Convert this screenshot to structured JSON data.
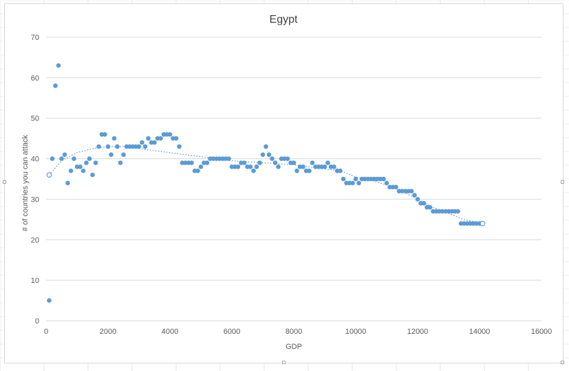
{
  "colors": {
    "point": "#5b9bd5",
    "trend": "#5b9bd5",
    "grid": "#d9d9d9",
    "text": "#595959",
    "title": "#404040"
  },
  "chart_data": {
    "type": "scatter",
    "title": "Egypt",
    "xlabel": "GDP",
    "ylabel": "# of countries you can attack",
    "xlim": [
      0,
      16000
    ],
    "ylim": [
      0,
      70
    ],
    "x_ticks": [
      0,
      2000,
      4000,
      6000,
      8000,
      10000,
      12000,
      14000,
      16000
    ],
    "y_ticks": [
      0,
      10,
      20,
      30,
      40,
      50,
      60,
      70
    ],
    "grid": "horizontal",
    "legend": "none",
    "trendline": {
      "style": "dotted",
      "kind": "polynomial",
      "points": [
        [
          100,
          36
        ],
        [
          500,
          39.5
        ],
        [
          1000,
          41.5
        ],
        [
          1500,
          42.5
        ],
        [
          2000,
          43
        ],
        [
          2500,
          43
        ],
        [
          3000,
          42.5
        ],
        [
          4000,
          41.5
        ],
        [
          5000,
          40.5
        ],
        [
          6000,
          39.5
        ],
        [
          7000,
          39
        ],
        [
          8000,
          38.5
        ],
        [
          9000,
          37.5
        ],
        [
          9500,
          37
        ],
        [
          10000,
          35.5
        ],
        [
          10500,
          34.7
        ],
        [
          11000,
          33.5
        ],
        [
          11500,
          32
        ],
        [
          12000,
          30
        ],
        [
          12500,
          28
        ],
        [
          13000,
          26.5
        ],
        [
          13500,
          25
        ],
        [
          14100,
          24
        ]
      ]
    },
    "series": [
      {
        "points": [
          [
            100,
            5
          ],
          [
            200,
            40
          ],
          [
            300,
            58
          ],
          [
            400,
            63
          ],
          [
            500,
            40
          ],
          [
            600,
            41
          ],
          [
            700,
            34
          ],
          [
            800,
            37
          ],
          [
            900,
            40
          ],
          [
            1000,
            38
          ],
          [
            1100,
            38
          ],
          [
            1200,
            37
          ],
          [
            1300,
            39
          ],
          [
            1400,
            40
          ],
          [
            1500,
            36
          ],
          [
            1600,
            39
          ],
          [
            1700,
            43
          ],
          [
            1800,
            46
          ],
          [
            1900,
            46
          ],
          [
            2000,
            43
          ],
          [
            2100,
            41
          ],
          [
            2200,
            45
          ],
          [
            2300,
            43
          ],
          [
            2400,
            39
          ],
          [
            2500,
            41
          ],
          [
            2600,
            43
          ],
          [
            2700,
            43
          ],
          [
            2800,
            43
          ],
          [
            2900,
            43
          ],
          [
            3000,
            43
          ],
          [
            3100,
            44
          ],
          [
            3200,
            43
          ],
          [
            3300,
            45
          ],
          [
            3400,
            44
          ],
          [
            3500,
            44
          ],
          [
            3600,
            45
          ],
          [
            3700,
            45
          ],
          [
            3800,
            46
          ],
          [
            3900,
            46
          ],
          [
            4000,
            46
          ],
          [
            4100,
            45
          ],
          [
            4200,
            45
          ],
          [
            4300,
            43
          ],
          [
            4400,
            39
          ],
          [
            4500,
            39
          ],
          [
            4600,
            39
          ],
          [
            4700,
            39
          ],
          [
            4800,
            37
          ],
          [
            4900,
            37
          ],
          [
            5000,
            38
          ],
          [
            5100,
            39
          ],
          [
            5200,
            39
          ],
          [
            5300,
            40
          ],
          [
            5400,
            40
          ],
          [
            5500,
            40
          ],
          [
            5600,
            40
          ],
          [
            5700,
            40
          ],
          [
            5800,
            40
          ],
          [
            5900,
            40
          ],
          [
            6000,
            38
          ],
          [
            6100,
            38
          ],
          [
            6200,
            38
          ],
          [
            6300,
            39
          ],
          [
            6400,
            39
          ],
          [
            6500,
            38
          ],
          [
            6600,
            38
          ],
          [
            6700,
            37
          ],
          [
            6800,
            38
          ],
          [
            6900,
            39
          ],
          [
            7000,
            41
          ],
          [
            7100,
            43
          ],
          [
            7200,
            41
          ],
          [
            7300,
            40
          ],
          [
            7400,
            39
          ],
          [
            7500,
            38
          ],
          [
            7600,
            40
          ],
          [
            7700,
            40
          ],
          [
            7800,
            40
          ],
          [
            7900,
            39
          ],
          [
            8000,
            39
          ],
          [
            8100,
            37
          ],
          [
            8200,
            38
          ],
          [
            8300,
            38
          ],
          [
            8400,
            37
          ],
          [
            8500,
            37
          ],
          [
            8600,
            39
          ],
          [
            8700,
            38
          ],
          [
            8800,
            38
          ],
          [
            8900,
            38
          ],
          [
            9000,
            38
          ],
          [
            9100,
            39
          ],
          [
            9200,
            38
          ],
          [
            9300,
            38
          ],
          [
            9400,
            37
          ],
          [
            9500,
            37
          ],
          [
            9600,
            35
          ],
          [
            9700,
            34
          ],
          [
            9800,
            34
          ],
          [
            9900,
            34
          ],
          [
            10000,
            35
          ],
          [
            10100,
            34
          ],
          [
            10200,
            35
          ],
          [
            10300,
            35
          ],
          [
            10400,
            35
          ],
          [
            10500,
            35
          ],
          [
            10600,
            35
          ],
          [
            10700,
            35
          ],
          [
            10800,
            35
          ],
          [
            10900,
            35
          ],
          [
            11000,
            34
          ],
          [
            11100,
            33
          ],
          [
            11200,
            33
          ],
          [
            11300,
            33
          ],
          [
            11400,
            32
          ],
          [
            11500,
            32
          ],
          [
            11600,
            32
          ],
          [
            11700,
            32
          ],
          [
            11800,
            32
          ],
          [
            11900,
            31
          ],
          [
            12000,
            30
          ],
          [
            12100,
            29
          ],
          [
            12200,
            29
          ],
          [
            12300,
            28
          ],
          [
            12400,
            28
          ],
          [
            12500,
            27
          ],
          [
            12600,
            27
          ],
          [
            12700,
            27
          ],
          [
            12800,
            27
          ],
          [
            12900,
            27
          ],
          [
            13000,
            27
          ],
          [
            13100,
            27
          ],
          [
            13200,
            27
          ],
          [
            13300,
            27
          ],
          [
            13400,
            24
          ],
          [
            13500,
            24
          ],
          [
            13600,
            24
          ],
          [
            13700,
            24
          ],
          [
            13800,
            24
          ],
          [
            13900,
            24
          ],
          [
            14000,
            24
          ],
          [
            14100,
            24
          ]
        ]
      }
    ]
  }
}
